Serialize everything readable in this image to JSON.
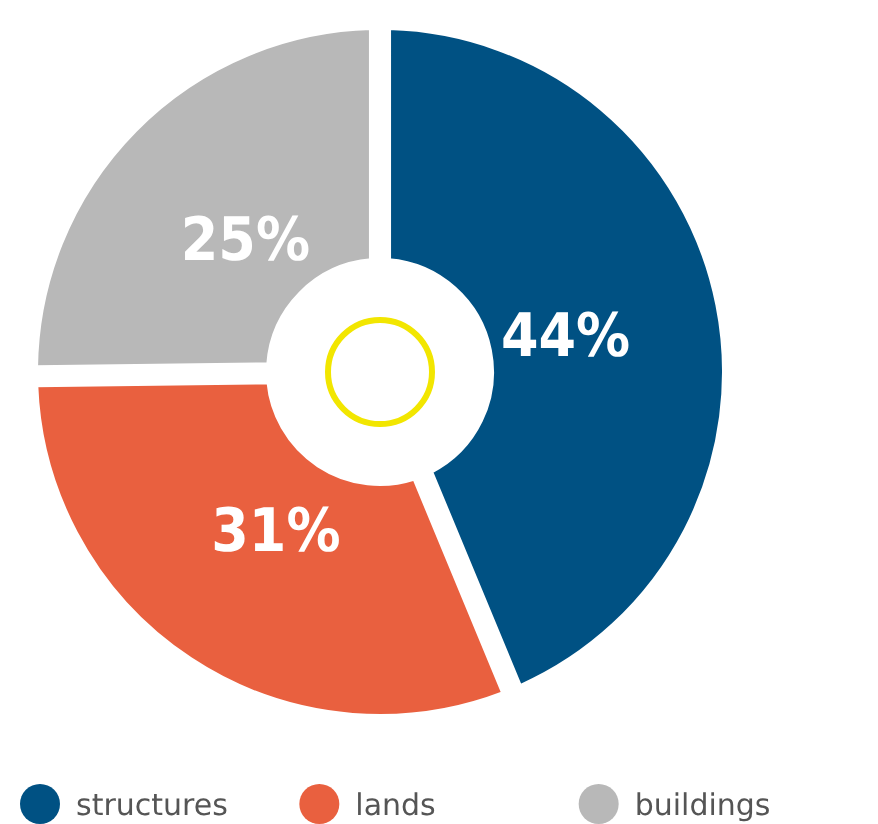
{
  "chart_data": {
    "type": "donut",
    "categories": [
      "structures",
      "lands",
      "buildings"
    ],
    "values": [
      44,
      31,
      25
    ],
    "colors": [
      "#005183",
      "#e9603f",
      "#b8b8b8"
    ],
    "value_labels": [
      "44%",
      "31%",
      "25%"
    ],
    "legend": "bottom"
  }
}
